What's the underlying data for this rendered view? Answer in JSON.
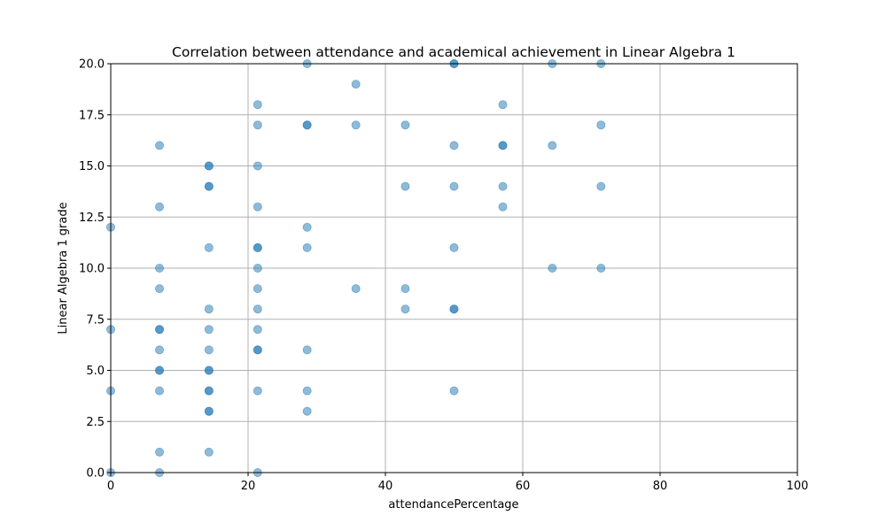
{
  "chart_data": {
    "type": "scatter",
    "title": "Correlation between attendance and academical achievement in Linear Algebra 1",
    "xlabel": "attendancePercentage",
    "ylabel": "Linear Algebra 1 grade",
    "xlim": [
      0,
      100
    ],
    "ylim": [
      0,
      20
    ],
    "xticks": [
      0,
      20,
      40,
      60,
      80,
      100
    ],
    "xtick_labels": [
      "0",
      "20",
      "40",
      "60",
      "80",
      "100"
    ],
    "yticks": [
      0,
      2.5,
      5,
      7.5,
      10,
      12.5,
      15,
      17.5,
      20
    ],
    "ytick_labels": [
      "0.0",
      "2.5",
      "5.0",
      "7.5",
      "10.0",
      "12.5",
      "15.0",
      "17.5",
      "20.0"
    ],
    "grid": true,
    "marker_color": "#1f77b4",
    "marker_alpha": 0.5,
    "points": [
      {
        "x": 0,
        "y": 0
      },
      {
        "x": 0,
        "y": 4
      },
      {
        "x": 0,
        "y": 7
      },
      {
        "x": 0,
        "y": 12
      },
      {
        "x": 7.1,
        "y": 0
      },
      {
        "x": 7.1,
        "y": 1
      },
      {
        "x": 7.1,
        "y": 4
      },
      {
        "x": 7.1,
        "y": 5
      },
      {
        "x": 7.1,
        "y": 5
      },
      {
        "x": 7.1,
        "y": 6
      },
      {
        "x": 7.1,
        "y": 7
      },
      {
        "x": 7.1,
        "y": 7
      },
      {
        "x": 7.1,
        "y": 9
      },
      {
        "x": 7.1,
        "y": 10
      },
      {
        "x": 7.1,
        "y": 13
      },
      {
        "x": 7.1,
        "y": 16
      },
      {
        "x": 14.3,
        "y": 1
      },
      {
        "x": 14.3,
        "y": 3
      },
      {
        "x": 14.3,
        "y": 3
      },
      {
        "x": 14.3,
        "y": 4
      },
      {
        "x": 14.3,
        "y": 4
      },
      {
        "x": 14.3,
        "y": 5
      },
      {
        "x": 14.3,
        "y": 5
      },
      {
        "x": 14.3,
        "y": 6
      },
      {
        "x": 14.3,
        "y": 7
      },
      {
        "x": 14.3,
        "y": 8
      },
      {
        "x": 14.3,
        "y": 11
      },
      {
        "x": 14.3,
        "y": 14
      },
      {
        "x": 14.3,
        "y": 14
      },
      {
        "x": 14.3,
        "y": 15
      },
      {
        "x": 14.3,
        "y": 15
      },
      {
        "x": 21.4,
        "y": 0
      },
      {
        "x": 21.4,
        "y": 4
      },
      {
        "x": 21.4,
        "y": 6
      },
      {
        "x": 21.4,
        "y": 6
      },
      {
        "x": 21.4,
        "y": 7
      },
      {
        "x": 21.4,
        "y": 8
      },
      {
        "x": 21.4,
        "y": 9
      },
      {
        "x": 21.4,
        "y": 10
      },
      {
        "x": 21.4,
        "y": 11
      },
      {
        "x": 21.4,
        "y": 11
      },
      {
        "x": 21.4,
        "y": 13
      },
      {
        "x": 21.4,
        "y": 15
      },
      {
        "x": 21.4,
        "y": 17
      },
      {
        "x": 21.4,
        "y": 18
      },
      {
        "x": 28.6,
        "y": 3
      },
      {
        "x": 28.6,
        "y": 4
      },
      {
        "x": 28.6,
        "y": 6
      },
      {
        "x": 28.6,
        "y": 11
      },
      {
        "x": 28.6,
        "y": 12
      },
      {
        "x": 28.6,
        "y": 17
      },
      {
        "x": 28.6,
        "y": 17
      },
      {
        "x": 28.6,
        "y": 20
      },
      {
        "x": 35.7,
        "y": 9
      },
      {
        "x": 35.7,
        "y": 17
      },
      {
        "x": 35.7,
        "y": 19
      },
      {
        "x": 42.9,
        "y": 8
      },
      {
        "x": 42.9,
        "y": 9
      },
      {
        "x": 42.9,
        "y": 14
      },
      {
        "x": 42.9,
        "y": 17
      },
      {
        "x": 50,
        "y": 4
      },
      {
        "x": 50,
        "y": 8
      },
      {
        "x": 50,
        "y": 8
      },
      {
        "x": 50,
        "y": 11
      },
      {
        "x": 50,
        "y": 14
      },
      {
        "x": 50,
        "y": 16
      },
      {
        "x": 50,
        "y": 20
      },
      {
        "x": 50,
        "y": 20
      },
      {
        "x": 57.1,
        "y": 13
      },
      {
        "x": 57.1,
        "y": 14
      },
      {
        "x": 57.1,
        "y": 16
      },
      {
        "x": 57.1,
        "y": 16
      },
      {
        "x": 57.1,
        "y": 18
      },
      {
        "x": 64.3,
        "y": 10
      },
      {
        "x": 64.3,
        "y": 16
      },
      {
        "x": 64.3,
        "y": 20
      },
      {
        "x": 71.4,
        "y": 10
      },
      {
        "x": 71.4,
        "y": 14
      },
      {
        "x": 71.4,
        "y": 17
      },
      {
        "x": 71.4,
        "y": 20
      }
    ]
  }
}
